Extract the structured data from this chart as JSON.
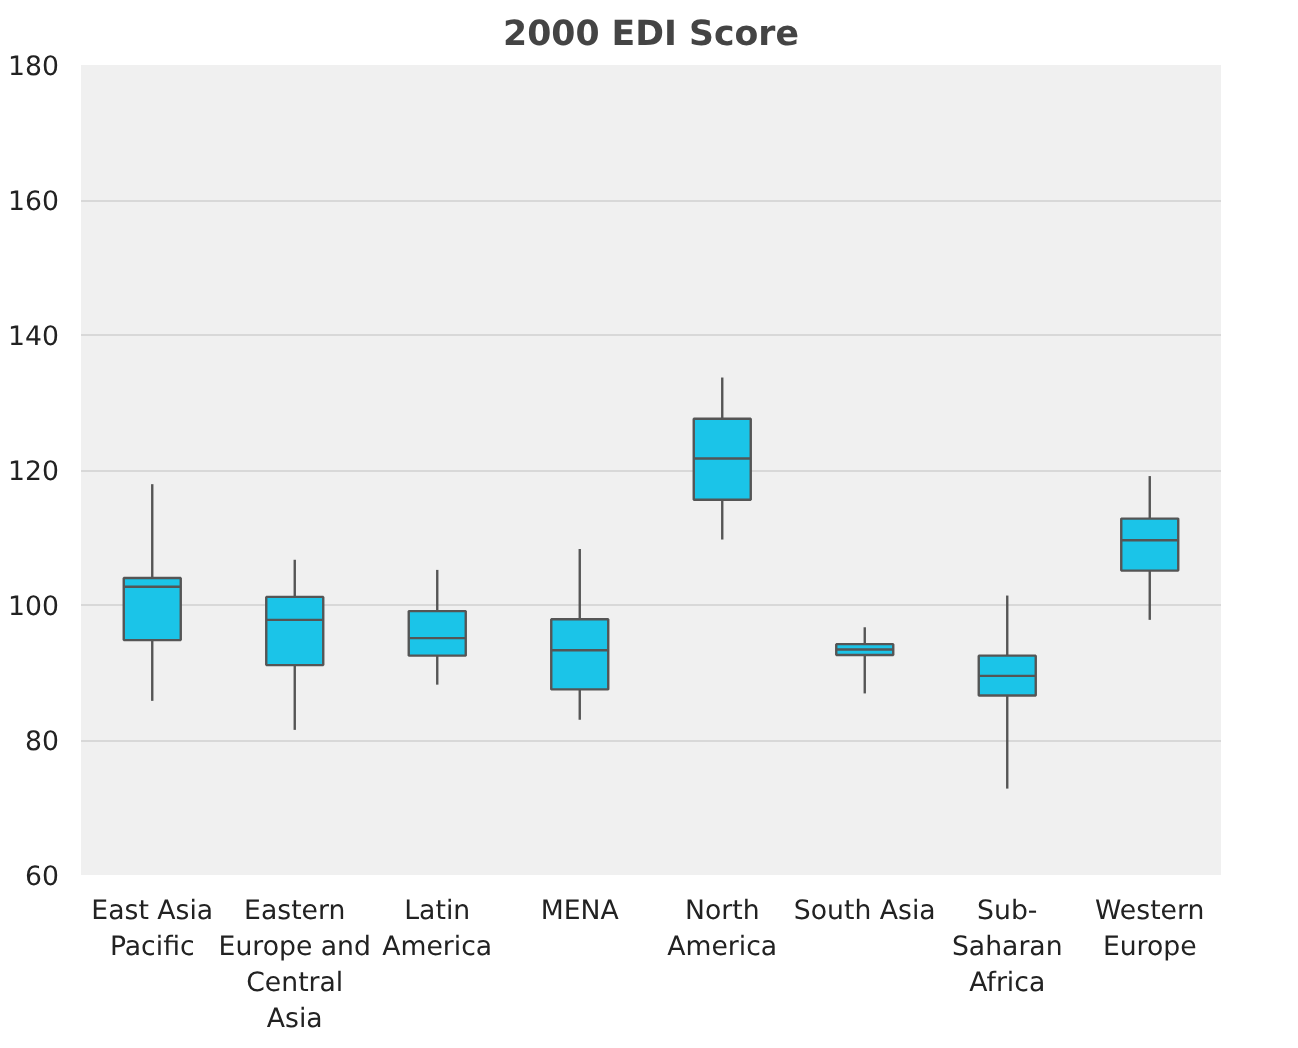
{
  "chart_data": {
    "type": "box",
    "title": "2000 EDI Score",
    "categories": [
      "East Asia Pacific",
      "Eastern Europe and Central Asia",
      "Latin America",
      "MENA",
      "North America",
      "South Asia",
      "Sub-Saharan Africa",
      "Western Europe"
    ],
    "color": "#1bc4e8",
    "boxes": [
      {
        "low": 85.8,
        "q1": 94.8,
        "median": 102.7,
        "q3": 104.0,
        "high": 117.9
      },
      {
        "low": 81.5,
        "q1": 91.1,
        "median": 97.8,
        "q3": 101.2,
        "high": 106.7
      },
      {
        "low": 88.2,
        "q1": 92.5,
        "median": 95.1,
        "q3": 99.1,
        "high": 105.2
      },
      {
        "low": 83.0,
        "q1": 87.5,
        "median": 93.3,
        "q3": 97.9,
        "high": 108.3
      },
      {
        "low": 109.7,
        "q1": 115.6,
        "median": 121.7,
        "q3": 127.6,
        "high": 133.7
      },
      {
        "low": 86.9,
        "q1": 92.6,
        "median": 93.4,
        "q3": 94.2,
        "high": 96.7
      },
      {
        "low": 72.8,
        "q1": 86.6,
        "median": 89.5,
        "q3": 92.5,
        "high": 101.4
      },
      {
        "low": 97.8,
        "q1": 105.1,
        "median": 109.6,
        "q3": 112.8,
        "high": 119.1
      }
    ],
    "ylim": [
      60,
      180
    ],
    "yticks": [
      60,
      80,
      100,
      120,
      140,
      160,
      180
    ],
    "grid": "y"
  }
}
